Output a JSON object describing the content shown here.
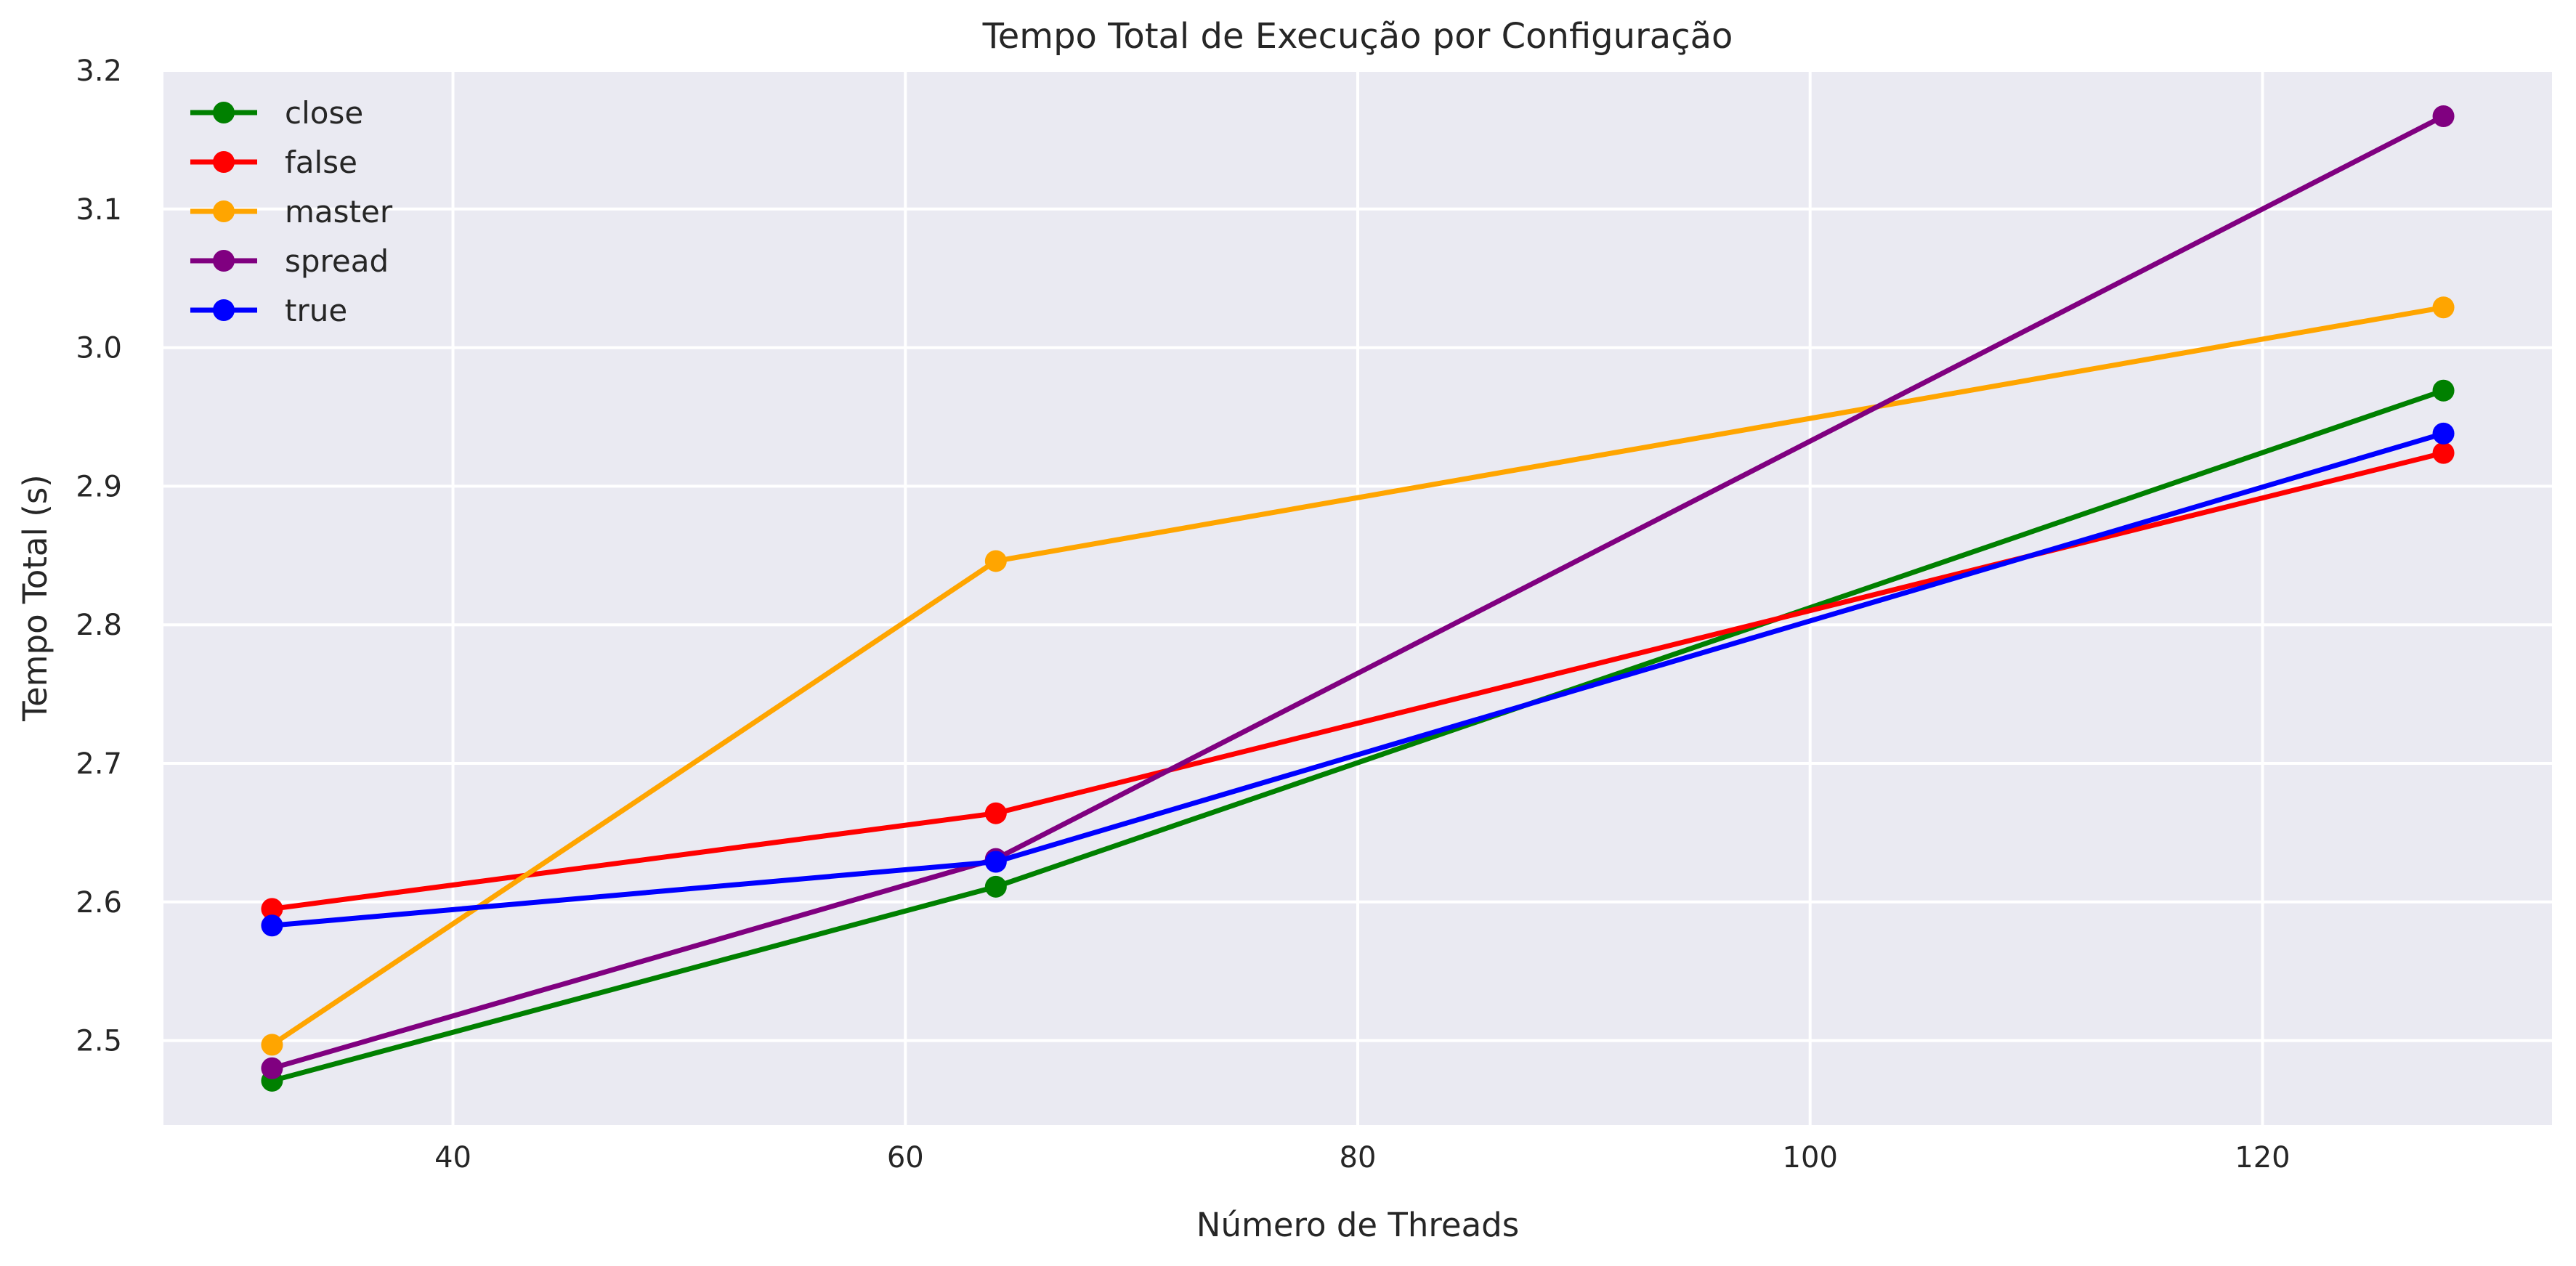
{
  "chart_data": {
    "type": "line",
    "title": "Tempo Total de Execução por Configuração",
    "xlabel": "Número de Threads",
    "ylabel": "Tempo Total (s)",
    "x": [
      32,
      64,
      128
    ],
    "xlim": [
      27.2,
      132.8
    ],
    "ylim": [
      2.439,
      3.2
    ],
    "xticks": [
      40,
      60,
      80,
      100,
      120
    ],
    "yticks": [
      2.5,
      2.6,
      2.7,
      2.8,
      2.9,
      3.0,
      3.1,
      3.2
    ],
    "ytick_labels": [
      "2.5",
      "2.6",
      "2.7",
      "2.8",
      "2.9",
      "3.0",
      "3.1",
      "3.2"
    ],
    "grid": true,
    "legend_position": "top-left",
    "series": [
      {
        "name": "close",
        "color": "#008000",
        "values": [
          2.471,
          2.611,
          2.969
        ]
      },
      {
        "name": "false",
        "color": "#ff0000",
        "values": [
          2.595,
          2.664,
          2.924
        ]
      },
      {
        "name": "master",
        "color": "#ffa500",
        "values": [
          2.497,
          2.846,
          3.029
        ]
      },
      {
        "name": "spread",
        "color": "#800080",
        "values": [
          2.48,
          2.631,
          3.167
        ]
      },
      {
        "name": "true",
        "color": "#0000ff",
        "values": [
          2.583,
          2.629,
          2.938
        ]
      }
    ]
  }
}
